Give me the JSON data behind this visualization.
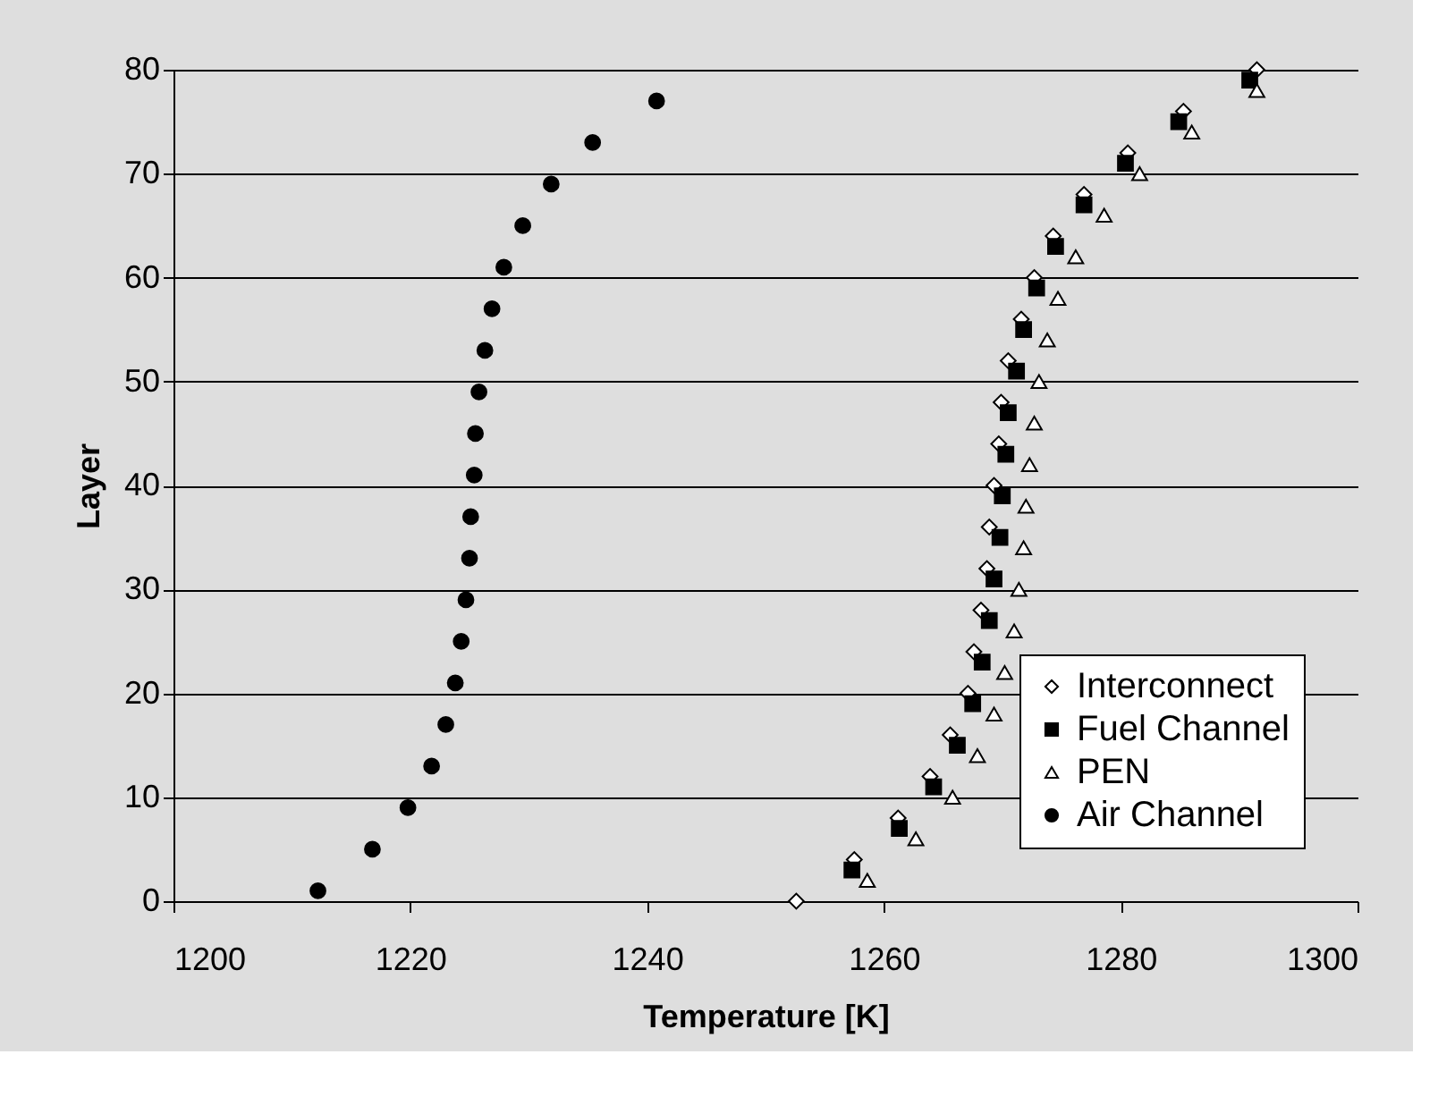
{
  "chart_data": {
    "type": "scatter",
    "xlabel": "Temperature [K]",
    "ylabel": "Layer",
    "xlim": [
      1200,
      1300
    ],
    "xticks": [
      1200,
      1220,
      1240,
      1260,
      1280,
      1300
    ],
    "ylim": [
      0,
      80
    ],
    "yticks": [
      0,
      10,
      20,
      30,
      40,
      50,
      60,
      70,
      80
    ],
    "grid": "y",
    "legend": "bottom right",
    "series": [
      {
        "name": "Interconnect",
        "color": "#000000",
        "marker": "diamond",
        "x": [
          1252.6,
          1257.5,
          1261.2,
          1263.9,
          1265.6,
          1267.1,
          1267.6,
          1268.2,
          1268.7,
          1268.9,
          1269.3,
          1269.7,
          1269.9,
          1270.5,
          1271.6,
          1272.7,
          1274.3,
          1276.9,
          1280.6,
          1285.3,
          1291.5
        ],
        "values": [
          0,
          4,
          8,
          12,
          16,
          20,
          24,
          28,
          32,
          36,
          40,
          44,
          48,
          52,
          56,
          60,
          64,
          68,
          72,
          76,
          80
        ]
      },
      {
        "name": "Fuel Channel",
        "color": "#000000",
        "marker": "square",
        "x": [
          1257.3,
          1261.3,
          1264.2,
          1266.2,
          1267.5,
          1268.3,
          1268.9,
          1269.3,
          1269.8,
          1270.0,
          1270.3,
          1270.5,
          1271.2,
          1271.8,
          1272.9,
          1274.5,
          1276.9,
          1280.4,
          1284.9,
          1290.9
        ],
        "values": [
          3,
          7,
          11,
          15,
          19,
          23,
          27,
          31,
          35,
          39,
          43,
          47,
          51,
          55,
          59,
          63,
          67,
          71,
          75,
          79
        ]
      },
      {
        "name": "PEN",
        "color": "#000000",
        "marker": "triangle",
        "x": [
          1258.6,
          1262.7,
          1265.8,
          1267.9,
          1269.3,
          1270.2,
          1271.0,
          1271.4,
          1271.8,
          1272.0,
          1272.3,
          1272.7,
          1273.1,
          1273.8,
          1274.7,
          1276.2,
          1278.6,
          1281.6,
          1286.0,
          1291.5
        ],
        "values": [
          2,
          6,
          10,
          14,
          18,
          22,
          26,
          30,
          34,
          38,
          42,
          46,
          50,
          54,
          58,
          62,
          66,
          70,
          74,
          78
        ]
      },
      {
        "name": "Air Channel",
        "color": "#000000",
        "marker": "circle",
        "x": [
          1212.2,
          1216.8,
          1219.8,
          1221.8,
          1223.0,
          1223.8,
          1224.3,
          1224.7,
          1225.0,
          1225.1,
          1225.4,
          1225.5,
          1225.8,
          1226.3,
          1226.9,
          1227.9,
          1229.5,
          1231.9,
          1235.4,
          1240.8
        ],
        "values": [
          1,
          5,
          9,
          13,
          17,
          21,
          25,
          29,
          33,
          37,
          41,
          45,
          49,
          53,
          57,
          61,
          65,
          69,
          73,
          77
        ]
      }
    ]
  }
}
